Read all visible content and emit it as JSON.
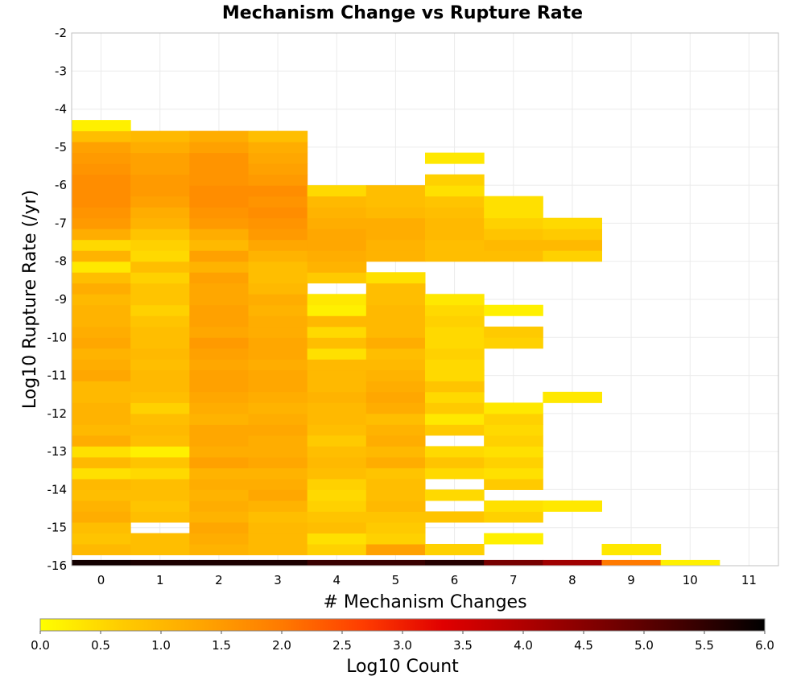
{
  "chart_data": {
    "type": "heatmap",
    "title": "Mechanism Change vs Rupture Rate",
    "xlabel": "# Mechanism Changes",
    "ylabel": "Log10 Rupture Rate (/yr)",
    "x_categories": [
      "0",
      "1",
      "2",
      "3",
      "4",
      "5",
      "6",
      "7",
      "8",
      "9",
      "10",
      "11"
    ],
    "ylim": [
      -16,
      -2
    ],
    "y_ticks": [
      -2,
      -3,
      -4,
      -5,
      -6,
      -7,
      -8,
      -9,
      -10,
      -11,
      -12,
      -13,
      -14,
      -15,
      -16
    ],
    "bin_height": 0.2857,
    "grid": true,
    "colorbar": {
      "label": "Log10 Count",
      "range": [
        0,
        6
      ],
      "ticks": [
        "0.0",
        "0.5",
        "1.0",
        "1.5",
        "2.0",
        "2.5",
        "3.0",
        "3.5",
        "4.0",
        "4.5",
        "5.0",
        "5.5",
        "6.0"
      ],
      "colors": [
        "#ffff00",
        "#ffcc00",
        "#ffa500",
        "#ff7a00",
        "#ff3d00",
        "#e00000",
        "#b00000",
        "#7a0000",
        "#400000",
        "#000000"
      ],
      "placement": "bottom"
    },
    "columns": [
      {
        "x": 0,
        "y_start": -16,
        "values": [
          5.8,
          1.0,
          0.8,
          0.9,
          1.2,
          1.1,
          0.9,
          1.0,
          0.4,
          1.0,
          0.4,
          1.2,
          1.0,
          1.1,
          1.1,
          1.0,
          1.0,
          1.3,
          1.2,
          1.1,
          1.3,
          1.2,
          1.1,
          1.1,
          1.0,
          1.2,
          0.9,
          0.3,
          1.1,
          0.5,
          1.2,
          1.5,
          1.6,
          1.7,
          1.7,
          1.7,
          1.6,
          1.5,
          1.4,
          0.9,
          0.2
        ]
      },
      {
        "x": 1,
        "y_start": -16,
        "values": [
          5.7,
          0.9,
          0.9,
          null,
          0.9,
          0.8,
          0.9,
          0.9,
          0.5,
          0.8,
          0.2,
          0.9,
          1.0,
          0.9,
          0.6,
          0.9,
          1.0,
          1.0,
          0.9,
          1.0,
          0.9,
          0.9,
          0.8,
          0.6,
          0.8,
          0.8,
          0.6,
          0.9,
          0.5,
          0.6,
          0.8,
          1.1,
          1.2,
          1.4,
          1.5,
          1.5,
          1.4,
          1.4,
          1.2,
          1.0
        ]
      },
      {
        "x": 2,
        "y_start": -16,
        "values": [
          5.7,
          1.1,
          1.2,
          1.3,
          1.1,
          1.2,
          1.1,
          1.2,
          1.1,
          1.4,
          1.2,
          1.3,
          1.3,
          1.1,
          1.2,
          1.3,
          1.4,
          1.4,
          1.3,
          1.4,
          1.5,
          1.3,
          1.4,
          1.4,
          1.3,
          1.3,
          1.4,
          1.1,
          1.4,
          1.0,
          1.2,
          1.5,
          1.6,
          1.7,
          1.7,
          1.6,
          1.6,
          1.6,
          1.4,
          1.2
        ]
      },
      {
        "x": 3,
        "y_start": -16,
        "values": [
          5.7,
          1.0,
          1.0,
          1.0,
          0.9,
          1.1,
          1.3,
          1.2,
          1.1,
          1.3,
          1.2,
          1.2,
          1.3,
          1.2,
          1.1,
          1.2,
          1.3,
          1.3,
          1.2,
          1.3,
          1.3,
          1.2,
          1.2,
          1.1,
          1.2,
          1.0,
          0.9,
          0.9,
          1.1,
          1.3,
          1.5,
          1.6,
          1.7,
          1.6,
          1.7,
          1.5,
          1.4,
          1.3,
          1.2,
          0.9
        ]
      },
      {
        "x": 4,
        "y_start": -16,
        "values": [
          5.4,
          0.6,
          0.4,
          0.9,
          0.8,
          0.6,
          0.5,
          0.6,
          0.9,
          1.0,
          0.9,
          0.7,
          0.9,
          1.0,
          1.0,
          1.1,
          1.0,
          1.0,
          1.0,
          0.4,
          0.9,
          0.5,
          1.0,
          0.2,
          0.3,
          null,
          0.7,
          1.1,
          1.2,
          1.3,
          1.3,
          1.2,
          1.1,
          1.0,
          0.5
        ]
      },
      {
        "x": 5,
        "y_start": -16,
        "values": [
          5.4,
          1.4,
          0.6,
          0.7,
          0.8,
          1.0,
          0.9,
          0.9,
          0.8,
          1.2,
          1.0,
          1.2,
          1.1,
          0.9,
          1.2,
          1.3,
          1.2,
          1.1,
          1.0,
          0.9,
          1.2,
          1.0,
          1.0,
          1.0,
          0.9,
          0.9,
          0.4,
          null,
          1.1,
          1.1,
          1.2,
          1.2,
          1.0,
          0.9,
          0.9
        ]
      },
      {
        "x": 6,
        "y_start": -16,
        "values": [
          5.6,
          0.6,
          null,
          null,
          0.8,
          null,
          0.5,
          null,
          0.5,
          0.8,
          0.5,
          null,
          0.7,
          0.3,
          0.7,
          0.5,
          0.8,
          0.5,
          0.5,
          0.6,
          0.5,
          0.5,
          0.6,
          0.5,
          0.3,
          null,
          null,
          null,
          0.9,
          0.9,
          1.0,
          1.0,
          0.9,
          0.8,
          0.4,
          0.6,
          null,
          0.3
        ]
      },
      {
        "x": 7,
        "y_start": -16,
        "values": [
          4.7,
          null,
          0.2,
          null,
          0.6,
          0.4,
          null,
          0.7,
          0.4,
          0.6,
          0.4,
          0.6,
          0.5,
          0.6,
          0.3,
          null,
          null,
          null,
          null,
          null,
          0.6,
          0.7,
          null,
          0.2,
          null,
          null,
          null,
          null,
          0.9,
          1.0,
          0.8,
          0.6,
          0.4,
          0.4
        ]
      },
      {
        "x": 8,
        "y_start": -16,
        "values": [
          4.2,
          null,
          null,
          null,
          null,
          0.3,
          null,
          null,
          null,
          null,
          null,
          null,
          null,
          null,
          null,
          0.3,
          null,
          null,
          null,
          null,
          null,
          null,
          null,
          null,
          null,
          null,
          null,
          null,
          0.6,
          1.0,
          0.7,
          0.5
        ]
      },
      {
        "x": 9,
        "y_start": -16,
        "values": [
          2.0,
          0.3
        ]
      },
      {
        "x": 10,
        "y_start": -16,
        "values": [
          0.2
        ]
      },
      {
        "x": 11,
        "y_start": -16,
        "values": []
      }
    ]
  }
}
